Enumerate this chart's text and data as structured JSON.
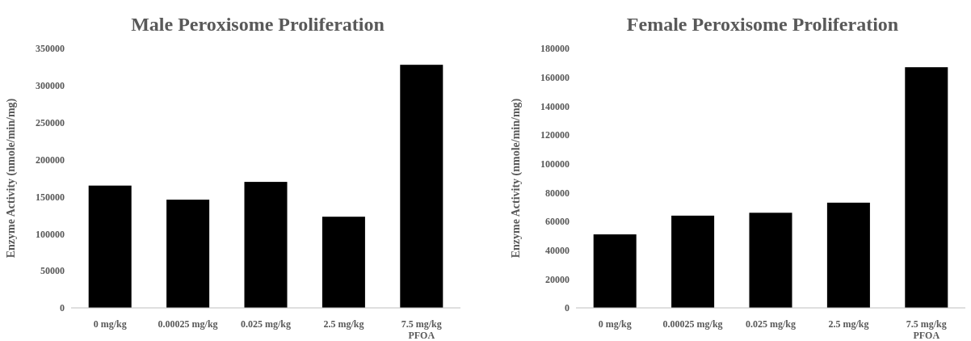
{
  "chart_data": [
    {
      "type": "bar",
      "title": "Male Peroxisome Proliferation",
      "ylabel": "Enzyme Activity (nmole/min/mg)",
      "categories": [
        "0 mg/kg",
        "0.00025 mg/kg",
        "0.025 mg/kg",
        "2.5 mg/kg",
        "7.5 mg/kg\nPFOA"
      ],
      "values": [
        165000,
        146000,
        170000,
        123000,
        328000
      ],
      "color": "#000000",
      "ylim": [
        0,
        350000
      ],
      "yticks": [
        0,
        50000,
        100000,
        150000,
        200000,
        250000,
        300000,
        350000
      ],
      "grid": false
    },
    {
      "type": "bar",
      "title": "Female Peroxisome Proliferation",
      "ylabel": "Enzyme Activity (nmole/min/mg)",
      "categories": [
        "0 mg/kg",
        "0.00025 mg/kg",
        "0.025 mg/kg",
        "2.5 mg/kg",
        "7.5 mg/kg\nPFOA"
      ],
      "values": [
        51000,
        64000,
        66000,
        73000,
        167000
      ],
      "color": "#000000",
      "ylim": [
        0,
        180000
      ],
      "yticks": [
        0,
        20000,
        40000,
        60000,
        80000,
        100000,
        120000,
        140000,
        160000,
        180000
      ],
      "grid": false
    }
  ]
}
